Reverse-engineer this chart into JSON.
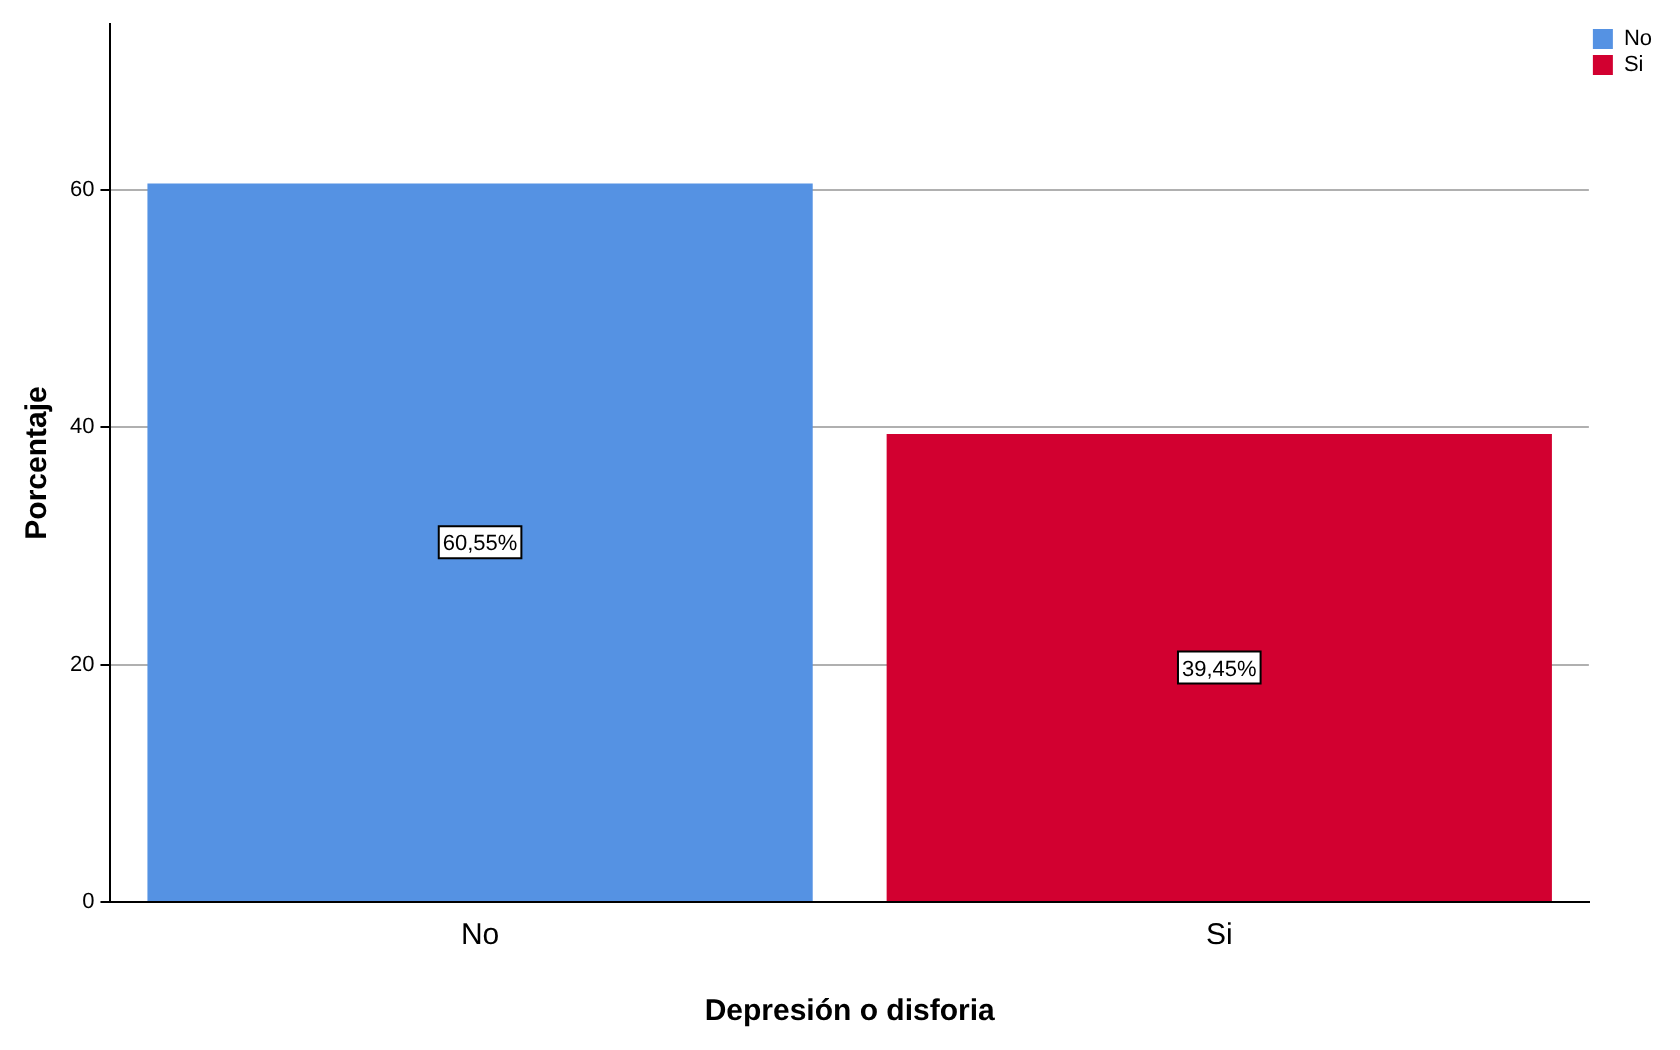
{
  "chart_data": {
    "type": "bar",
    "xlabel": "Depresión o disforia",
    "ylabel": "Porcentaje",
    "categories": [
      "No",
      "Si"
    ],
    "series": [
      {
        "name": "No",
        "color": "#5592e3",
        "values": [
          60.55,
          null
        ],
        "value_labels": [
          "60,55%",
          null
        ]
      },
      {
        "name": "Si",
        "color": "#d20030",
        "values": [
          null,
          39.45
        ],
        "value_labels": [
          null,
          "39,45%"
        ]
      }
    ],
    "ylim": [
      0,
      74
    ],
    "yticks": [
      0,
      20,
      40,
      60
    ],
    "grid": "y",
    "legend": "top right"
  }
}
